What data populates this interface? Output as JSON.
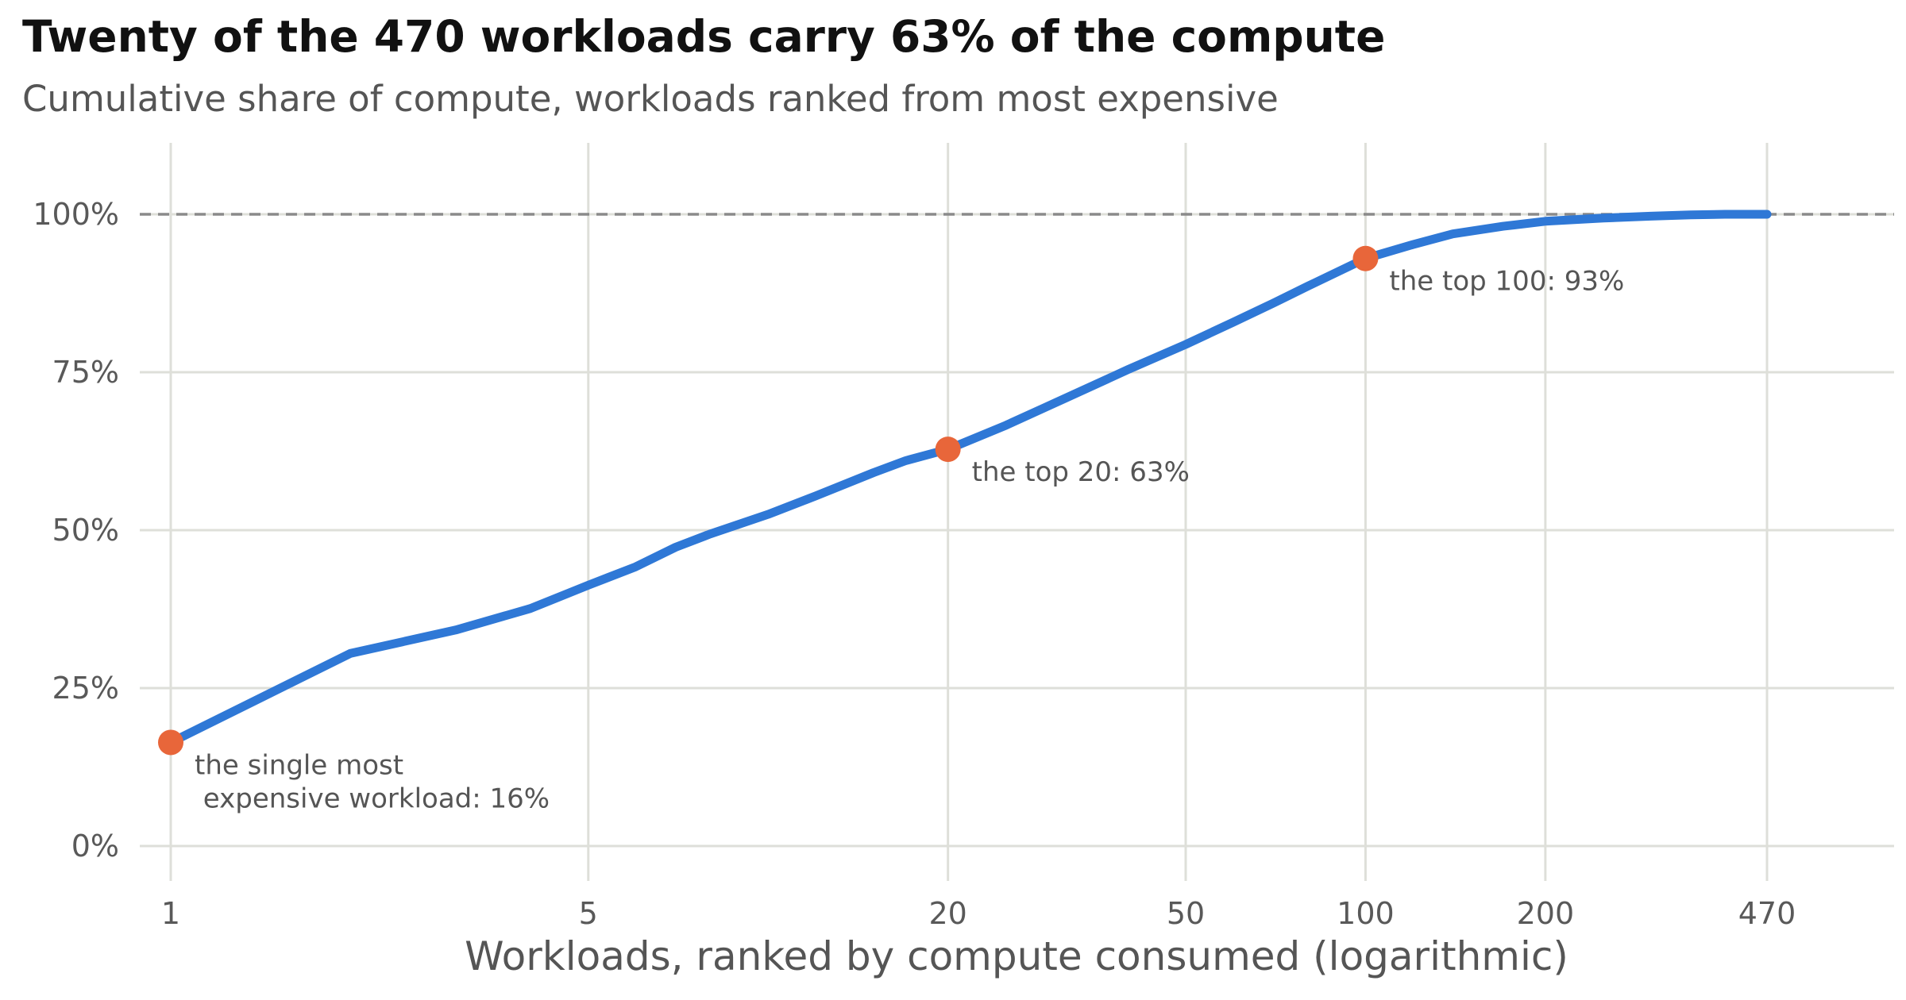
{
  "chart_data": {
    "type": "line",
    "title": "Twenty of the 470 workloads carry 63% of the compute",
    "subtitle": "Cumulative share of compute, workloads ranked from most expensive",
    "xlabel": "Workloads, ranked by compute consumed (logarithmic)",
    "ylabel": "",
    "x_scale": "log",
    "xlim": [
      1,
      470
    ],
    "ylim": [
      0,
      100
    ],
    "x_ticks": [
      1,
      5,
      20,
      50,
      100,
      200,
      470
    ],
    "x_tick_labels": [
      "1",
      "5",
      "20",
      "50",
      "100",
      "200",
      "470"
    ],
    "y_ticks": [
      0,
      25,
      50,
      75,
      100
    ],
    "y_tick_labels": [
      "0%",
      "25%",
      "50%",
      "75%",
      "100%"
    ],
    "grid": true,
    "reference_line": {
      "y": 100,
      "style": "dashed"
    },
    "series": [
      {
        "x": [
          1,
          2,
          3,
          4,
          5,
          6,
          7,
          8,
          10,
          12,
          15,
          17,
          20,
          25,
          30,
          40,
          50,
          60,
          70,
          80,
          100,
          120,
          140,
          170,
          200,
          250,
          300,
          350,
          400,
          470
        ],
        "y": [
          16.4,
          30.5,
          34.2,
          37.6,
          41.3,
          44.2,
          47.3,
          49.4,
          52.5,
          55.4,
          59.1,
          61.0,
          62.8,
          66.6,
          70.0,
          75.4,
          79.4,
          82.9,
          85.9,
          88.6,
          93.0,
          95.2,
          96.9,
          98.1,
          98.9,
          99.4,
          99.7,
          99.9,
          100.0,
          100.0
        ]
      }
    ],
    "annotations": [
      {
        "x": 1,
        "y": 16.4,
        "lines": [
          "the single most",
          "  expensive workload: 16%"
        ]
      },
      {
        "x": 20,
        "y": 62.8,
        "lines": [
          "the top 20: 63%"
        ]
      },
      {
        "x": 100,
        "y": 93.0,
        "lines": [
          "the top 100: 93%"
        ]
      }
    ],
    "colors": {
      "line": "#2f78d6",
      "marker": "#e8663a",
      "grid": "#dedfd9",
      "reference": "#8a8a8a"
    }
  }
}
